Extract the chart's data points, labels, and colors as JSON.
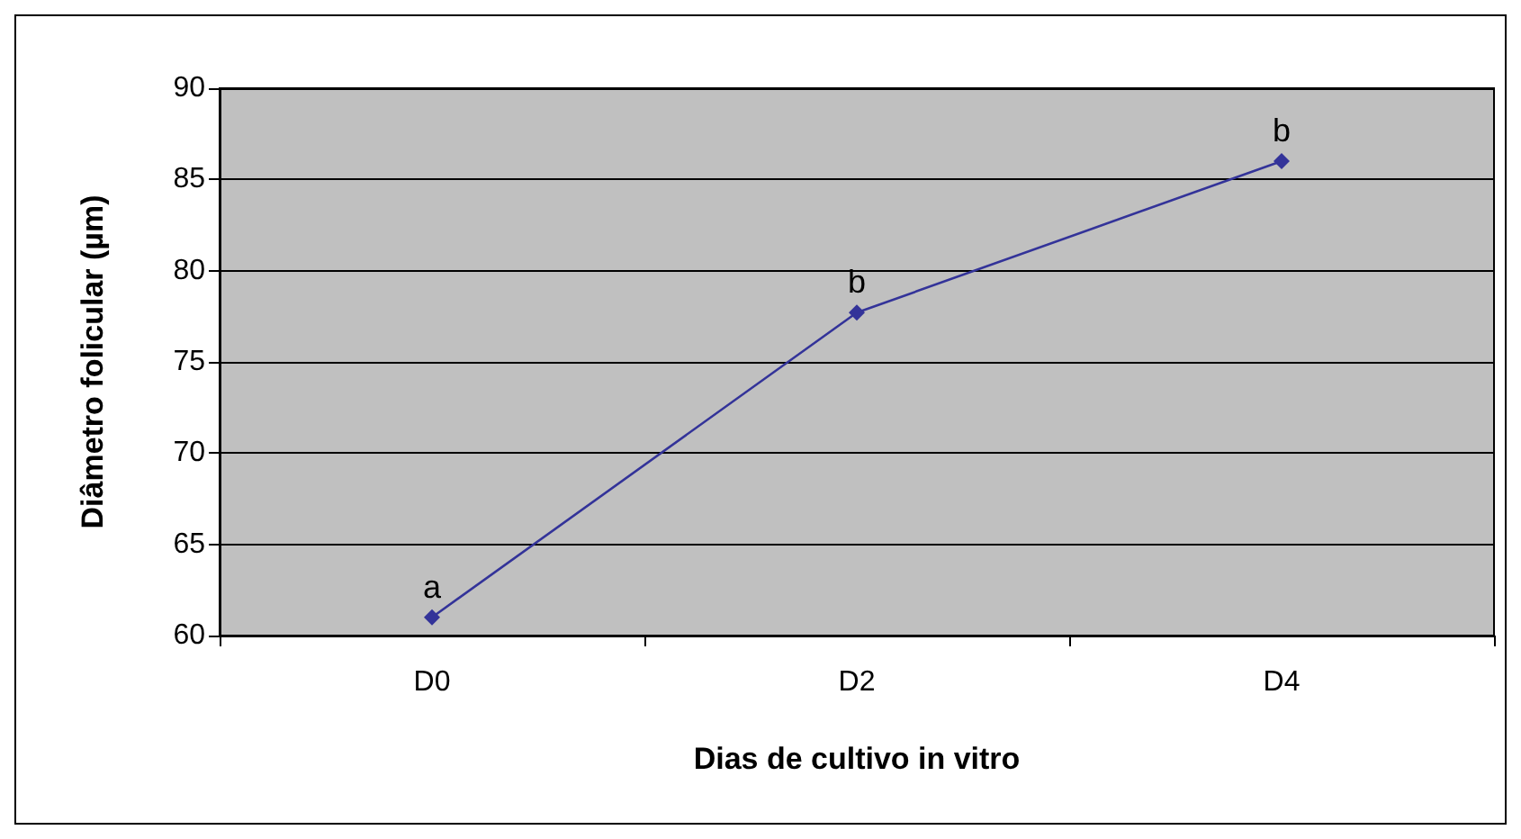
{
  "chart_data": {
    "type": "line",
    "xlabel": "Dias de cultivo in vitro",
    "ylabel": "Diâmetro folicular (µm)",
    "categories": [
      "D0",
      "D2",
      "D4"
    ],
    "series": [
      {
        "color": "#333399",
        "values": [
          61,
          77.7,
          86
        ]
      }
    ],
    "ylim": [
      60,
      90
    ],
    "yticks": [
      60,
      65,
      70,
      75,
      80,
      85,
      90
    ],
    "grid": "y",
    "marker": "diamond",
    "line_style": "solid",
    "annotations": [
      {
        "text": "a",
        "x": "D0",
        "y": 61
      },
      {
        "text": "b",
        "x": "D2",
        "y": 77.7
      },
      {
        "text": "b",
        "x": "D4",
        "y": 86
      }
    ]
  }
}
